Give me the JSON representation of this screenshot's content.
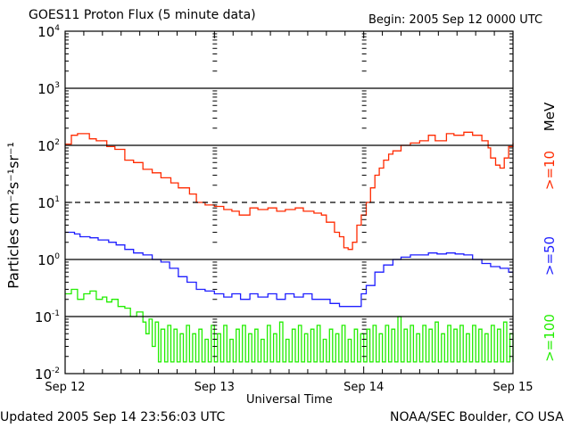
{
  "chart_data": {
    "type": "line",
    "title": "GOES11 Proton Flux (5 minute data)",
    "begin_label": "Begin: 2005 Sep 12 0000 UTC",
    "xlabel": "Universal Time",
    "ylabel": "Particles cm⁻²s⁻¹sr⁻¹",
    "yscale": "log",
    "ylim": [
      0.01,
      10000
    ],
    "xlim_hours": [
      0,
      72
    ],
    "x_tick_labels": [
      "Sep 12",
      "Sep 13",
      "Sep 14",
      "Sep 15"
    ],
    "y_tick_labels": [
      {
        "base": "10",
        "exp": "4",
        "value": 10000
      },
      {
        "base": "10",
        "exp": "3",
        "value": 1000
      },
      {
        "base": "10",
        "exp": "2",
        "value": 100
      },
      {
        "base": "10",
        "exp": "1",
        "value": 10
      },
      {
        "base": "10",
        "exp": "0",
        "value": 1
      },
      {
        "base": "10",
        "exp": "-1",
        "value": 0.1
      },
      {
        "base": "10",
        "exp": "-2",
        "value": 0.01
      }
    ],
    "reference_lines": [
      {
        "value": 1000,
        "style": "solid"
      },
      {
        "value": 100,
        "style": "solid"
      },
      {
        "value": 10,
        "style": "dashed"
      },
      {
        "value": 1,
        "style": "solid"
      },
      {
        "value": 0.1,
        "style": "solid"
      }
    ],
    "units_label": "MeV",
    "series": [
      {
        "name": ">=10",
        "color": "#ff2a00",
        "points": [
          [
            0,
            105
          ],
          [
            1,
            150
          ],
          [
            2,
            160
          ],
          [
            3.9,
            130
          ],
          [
            5,
            120
          ],
          [
            6.7,
            95
          ],
          [
            8,
            85
          ],
          [
            9.6,
            55
          ],
          [
            11,
            50
          ],
          [
            12.5,
            38
          ],
          [
            14,
            33
          ],
          [
            15.4,
            27
          ],
          [
            17,
            22
          ],
          [
            18.2,
            18
          ],
          [
            20,
            14
          ],
          [
            21.1,
            10
          ],
          [
            22.5,
            9
          ],
          [
            24,
            8.5
          ],
          [
            25.5,
            7.5
          ],
          [
            26.8,
            7
          ],
          [
            28,
            6
          ],
          [
            29.7,
            8
          ],
          [
            31,
            7.5
          ],
          [
            32.6,
            8
          ],
          [
            34,
            7
          ],
          [
            35.4,
            7.5
          ],
          [
            37,
            8
          ],
          [
            38.3,
            7
          ],
          [
            40,
            6.5
          ],
          [
            41.2,
            6
          ],
          [
            42,
            4.5
          ],
          [
            42.6,
            4.5
          ],
          [
            43.3,
            3
          ],
          [
            44.1,
            2.5
          ],
          [
            44.8,
            1.6
          ],
          [
            45.5,
            1.5
          ],
          [
            46.2,
            2
          ],
          [
            46.9,
            4
          ],
          [
            47.6,
            6
          ],
          [
            48.4,
            10
          ],
          [
            49.1,
            18
          ],
          [
            49.8,
            30
          ],
          [
            50.5,
            40
          ],
          [
            51.2,
            55
          ],
          [
            52,
            70
          ],
          [
            52.7,
            80
          ],
          [
            54,
            100
          ],
          [
            55.5,
            110
          ],
          [
            57,
            120
          ],
          [
            58.4,
            150
          ],
          [
            59.5,
            120
          ],
          [
            61.3,
            160
          ],
          [
            62.5,
            150
          ],
          [
            64.1,
            170
          ],
          [
            65.5,
            150
          ],
          [
            67,
            120
          ],
          [
            68,
            90
          ],
          [
            68.4,
            60
          ],
          [
            69.2,
            45
          ],
          [
            69.9,
            40
          ],
          [
            70.6,
            60
          ],
          [
            71.3,
            95
          ],
          [
            72,
            110
          ]
        ]
      },
      {
        "name": ">=50",
        "color": "#1e1eff",
        "points": [
          [
            0,
            3.0
          ],
          [
            1.5,
            2.8
          ],
          [
            2.4,
            2.5
          ],
          [
            4,
            2.4
          ],
          [
            5.3,
            2.2
          ],
          [
            7,
            2.0
          ],
          [
            8.2,
            1.8
          ],
          [
            9.6,
            1.5
          ],
          [
            11,
            1.3
          ],
          [
            12.5,
            1.2
          ],
          [
            14,
            1.0
          ],
          [
            15.4,
            0.9
          ],
          [
            16.8,
            0.7
          ],
          [
            18.2,
            0.5
          ],
          [
            19.6,
            0.4
          ],
          [
            21.1,
            0.3
          ],
          [
            22.5,
            0.28
          ],
          [
            24,
            0.25
          ],
          [
            25.5,
            0.22
          ],
          [
            26.8,
            0.25
          ],
          [
            28.2,
            0.2
          ],
          [
            29.7,
            0.25
          ],
          [
            31,
            0.22
          ],
          [
            32.6,
            0.25
          ],
          [
            34,
            0.2
          ],
          [
            35.4,
            0.25
          ],
          [
            36.8,
            0.22
          ],
          [
            38.3,
            0.25
          ],
          [
            39.7,
            0.2
          ],
          [
            41.2,
            0.2
          ],
          [
            42.6,
            0.17
          ],
          [
            44.1,
            0.15
          ],
          [
            45.5,
            0.15
          ],
          [
            46.9,
            0.15
          ],
          [
            47.6,
            0.25
          ],
          [
            48.4,
            0.35
          ],
          [
            49.8,
            0.6
          ],
          [
            51.2,
            0.8
          ],
          [
            52.7,
            1.0
          ],
          [
            54,
            1.1
          ],
          [
            55.5,
            1.2
          ],
          [
            57,
            1.2
          ],
          [
            58.4,
            1.3
          ],
          [
            59.8,
            1.25
          ],
          [
            61.3,
            1.3
          ],
          [
            62.7,
            1.25
          ],
          [
            64.1,
            1.2
          ],
          [
            65.5,
            1.0
          ],
          [
            67,
            0.85
          ],
          [
            68.4,
            0.75
          ],
          [
            69.9,
            0.7
          ],
          [
            71.3,
            0.6
          ],
          [
            72,
            0.6
          ]
        ]
      },
      {
        "name": ">=100",
        "color": "#22ee00",
        "points": [
          [
            0,
            0.25
          ],
          [
            1,
            0.3
          ],
          [
            2,
            0.2
          ],
          [
            3,
            0.25
          ],
          [
            4,
            0.28
          ],
          [
            5,
            0.2
          ],
          [
            6,
            0.22
          ],
          [
            6.7,
            0.18
          ],
          [
            7.5,
            0.2
          ],
          [
            8.5,
            0.15
          ],
          [
            9.6,
            0.14
          ],
          [
            10.5,
            0.1
          ],
          [
            11.5,
            0.12
          ],
          [
            12.5,
            0.08
          ],
          [
            13,
            0.05
          ],
          [
            13.5,
            0.09
          ],
          [
            14,
            0.03
          ],
          [
            14.5,
            0.08
          ],
          [
            15,
            0.016
          ],
          [
            15.4,
            0.06
          ],
          [
            16,
            0.016
          ],
          [
            16.5,
            0.07
          ],
          [
            17,
            0.016
          ],
          [
            17.5,
            0.06
          ],
          [
            18,
            0.016
          ],
          [
            18.5,
            0.05
          ],
          [
            19,
            0.016
          ],
          [
            19.5,
            0.07
          ],
          [
            20,
            0.016
          ],
          [
            20.5,
            0.05
          ],
          [
            21,
            0.016
          ],
          [
            21.5,
            0.06
          ],
          [
            22,
            0.016
          ],
          [
            22.5,
            0.04
          ],
          [
            23,
            0.016
          ],
          [
            23.5,
            0.07
          ],
          [
            24,
            0.016
          ],
          [
            24.5,
            0.05
          ],
          [
            25,
            0.016
          ],
          [
            25.5,
            0.07
          ],
          [
            26,
            0.016
          ],
          [
            26.5,
            0.04
          ],
          [
            27,
            0.016
          ],
          [
            27.5,
            0.06
          ],
          [
            28,
            0.016
          ],
          [
            28.5,
            0.07
          ],
          [
            29,
            0.016
          ],
          [
            29.5,
            0.05
          ],
          [
            30,
            0.016
          ],
          [
            30.5,
            0.06
          ],
          [
            31,
            0.016
          ],
          [
            31.5,
            0.04
          ],
          [
            32,
            0.016
          ],
          [
            32.5,
            0.07
          ],
          [
            33,
            0.016
          ],
          [
            33.5,
            0.05
          ],
          [
            34,
            0.016
          ],
          [
            34.5,
            0.08
          ],
          [
            35,
            0.016
          ],
          [
            35.5,
            0.04
          ],
          [
            36,
            0.016
          ],
          [
            36.5,
            0.06
          ],
          [
            37,
            0.016
          ],
          [
            37.5,
            0.07
          ],
          [
            38,
            0.016
          ],
          [
            38.5,
            0.05
          ],
          [
            39,
            0.016
          ],
          [
            39.5,
            0.06
          ],
          [
            40,
            0.016
          ],
          [
            40.5,
            0.07
          ],
          [
            41,
            0.016
          ],
          [
            41.5,
            0.04
          ],
          [
            42,
            0.016
          ],
          [
            42.5,
            0.06
          ],
          [
            43,
            0.016
          ],
          [
            43.5,
            0.05
          ],
          [
            44,
            0.016
          ],
          [
            44.5,
            0.07
          ],
          [
            45,
            0.016
          ],
          [
            45.5,
            0.04
          ],
          [
            46,
            0.016
          ],
          [
            46.5,
            0.06
          ],
          [
            47,
            0.016
          ],
          [
            47.5,
            0.05
          ],
          [
            48,
            0.016
          ],
          [
            48.5,
            0.06
          ],
          [
            49,
            0.016
          ],
          [
            49.5,
            0.07
          ],
          [
            50,
            0.016
          ],
          [
            50.5,
            0.05
          ],
          [
            51,
            0.016
          ],
          [
            51.5,
            0.07
          ],
          [
            52,
            0.016
          ],
          [
            52.5,
            0.06
          ],
          [
            53,
            0.016
          ],
          [
            53.5,
            0.1
          ],
          [
            54,
            0.016
          ],
          [
            54.5,
            0.06
          ],
          [
            55,
            0.016
          ],
          [
            55.5,
            0.07
          ],
          [
            56,
            0.016
          ],
          [
            56.5,
            0.05
          ],
          [
            57,
            0.016
          ],
          [
            57.5,
            0.07
          ],
          [
            58,
            0.016
          ],
          [
            58.5,
            0.06
          ],
          [
            59,
            0.016
          ],
          [
            59.5,
            0.08
          ],
          [
            60,
            0.016
          ],
          [
            60.5,
            0.05
          ],
          [
            61,
            0.016
          ],
          [
            61.5,
            0.07
          ],
          [
            62,
            0.016
          ],
          [
            62.5,
            0.06
          ],
          [
            63,
            0.016
          ],
          [
            63.5,
            0.07
          ],
          [
            64,
            0.016
          ],
          [
            64.5,
            0.05
          ],
          [
            65,
            0.016
          ],
          [
            65.5,
            0.07
          ],
          [
            66,
            0.016
          ],
          [
            66.5,
            0.06
          ],
          [
            67,
            0.016
          ],
          [
            67.5,
            0.05
          ],
          [
            68,
            0.016
          ],
          [
            68.5,
            0.07
          ],
          [
            69,
            0.016
          ],
          [
            69.5,
            0.06
          ],
          [
            70,
            0.016
          ],
          [
            70.5,
            0.08
          ],
          [
            71,
            0.016
          ],
          [
            71.5,
            0.05
          ],
          [
            72,
            0.016
          ]
        ]
      }
    ]
  },
  "footer": {
    "updated": "Updated 2005 Sep 14 23:56:03 UTC",
    "credit": "NOAA/SEC Boulder, CO USA"
  }
}
